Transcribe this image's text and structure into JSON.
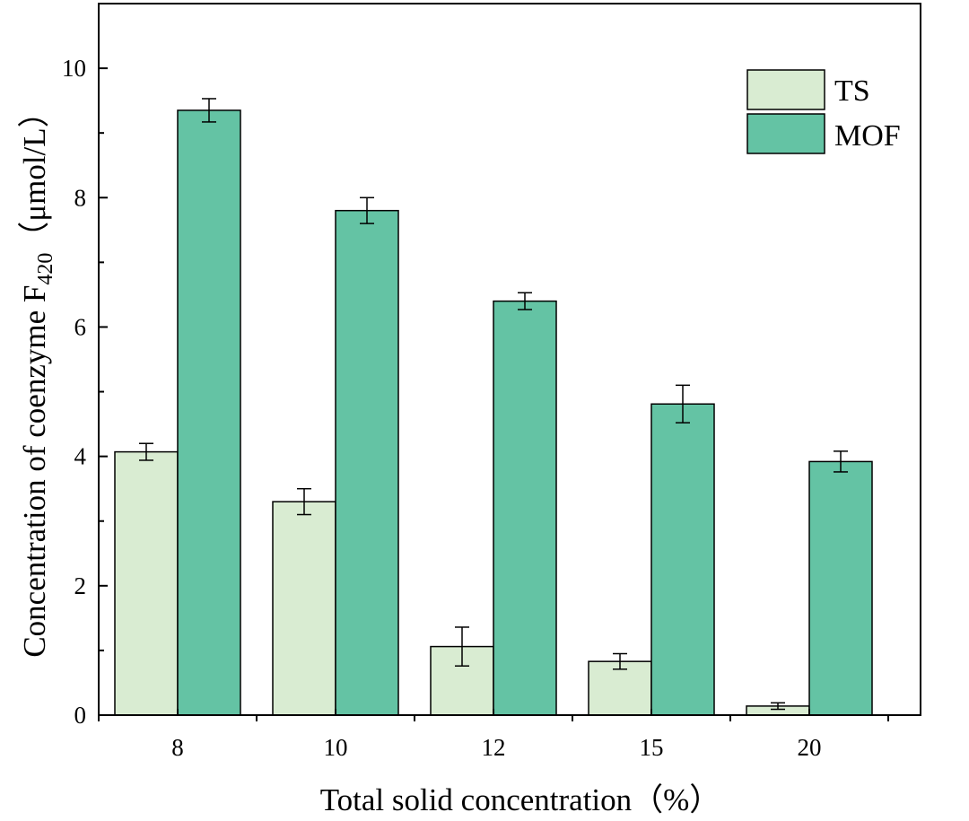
{
  "chart_data": {
    "type": "bar",
    "categories": [
      "8",
      "10",
      "12",
      "15",
      "20"
    ],
    "series": [
      {
        "name": "TS",
        "color": "#d9ecd2",
        "values": [
          4.07,
          3.3,
          1.06,
          0.83,
          0.14
        ],
        "errors": [
          0.13,
          0.2,
          0.3,
          0.12,
          0.05
        ]
      },
      {
        "name": "MOF",
        "color": "#64c3a4",
        "values": [
          9.35,
          7.8,
          6.4,
          4.81,
          3.92
        ],
        "errors": [
          0.18,
          0.2,
          0.13,
          0.29,
          0.16
        ]
      }
    ],
    "ylim": [
      0,
      11
    ],
    "yticks": [
      0,
      2,
      4,
      6,
      8,
      10
    ],
    "xlabel": "Total solid concentration（%）",
    "ylabel_main": "Concentration of coenzyme F",
    "ylabel_sub": "420",
    "ylabel_unit": "（μmol/L）",
    "legend_position": "top-right"
  }
}
